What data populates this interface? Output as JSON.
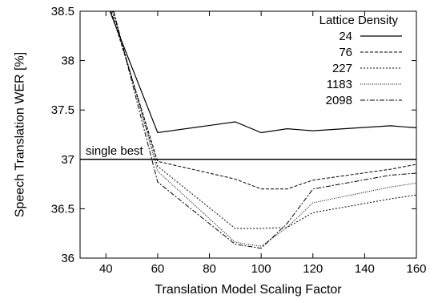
{
  "chart_data": {
    "type": "line",
    "xlabel": "Translation Model Scaling Factor",
    "ylabel": "Speech Translation WER [%]",
    "xlim": [
      30,
      160
    ],
    "ylim": [
      36,
      38.5
    ],
    "xticks": [
      40,
      60,
      80,
      100,
      120,
      140,
      160
    ],
    "yticks": [
      36,
      36.5,
      37,
      37.5,
      38,
      38.5
    ],
    "ytick_labels": [
      "36",
      "36.5",
      "37",
      "37.5",
      "38",
      "38.5"
    ],
    "grid": false,
    "legend": {
      "title": "Lattice Density",
      "placement": "top-right"
    },
    "reference_line": {
      "label": "single best",
      "y": 37.0
    },
    "series": [
      {
        "name": "24",
        "dash": "solid",
        "x": [
          41.5,
          60,
          90,
          100,
          110,
          120,
          150,
          160
        ],
        "y": [
          38.5,
          37.27,
          37.38,
          37.27,
          37.31,
          37.29,
          37.34,
          37.32
        ]
      },
      {
        "name": "76",
        "dash": "dashed",
        "x": [
          42,
          60,
          90,
          100,
          110,
          120,
          150,
          160
        ],
        "y": [
          38.5,
          36.98,
          36.8,
          36.7,
          36.7,
          36.79,
          36.9,
          36.95
        ]
      },
      {
        "name": "227",
        "dash": "dotted",
        "x": [
          42.5,
          60,
          90,
          100,
          110,
          120,
          150,
          160
        ],
        "y": [
          38.5,
          36.93,
          36.3,
          36.3,
          36.31,
          36.46,
          36.6,
          36.64
        ]
      },
      {
        "name": "1183",
        "dash": "fine-dotted",
        "x": [
          42.8,
          60,
          90,
          100,
          110,
          120,
          150,
          160
        ],
        "y": [
          38.5,
          36.88,
          36.16,
          36.12,
          36.31,
          36.56,
          36.72,
          36.76
        ]
      },
      {
        "name": "2098",
        "dash": "dash-dot",
        "x": [
          43,
          60,
          90,
          100,
          110,
          120,
          150,
          160
        ],
        "y": [
          38.5,
          36.77,
          36.14,
          36.1,
          36.35,
          36.7,
          36.84,
          36.86
        ]
      }
    ]
  }
}
